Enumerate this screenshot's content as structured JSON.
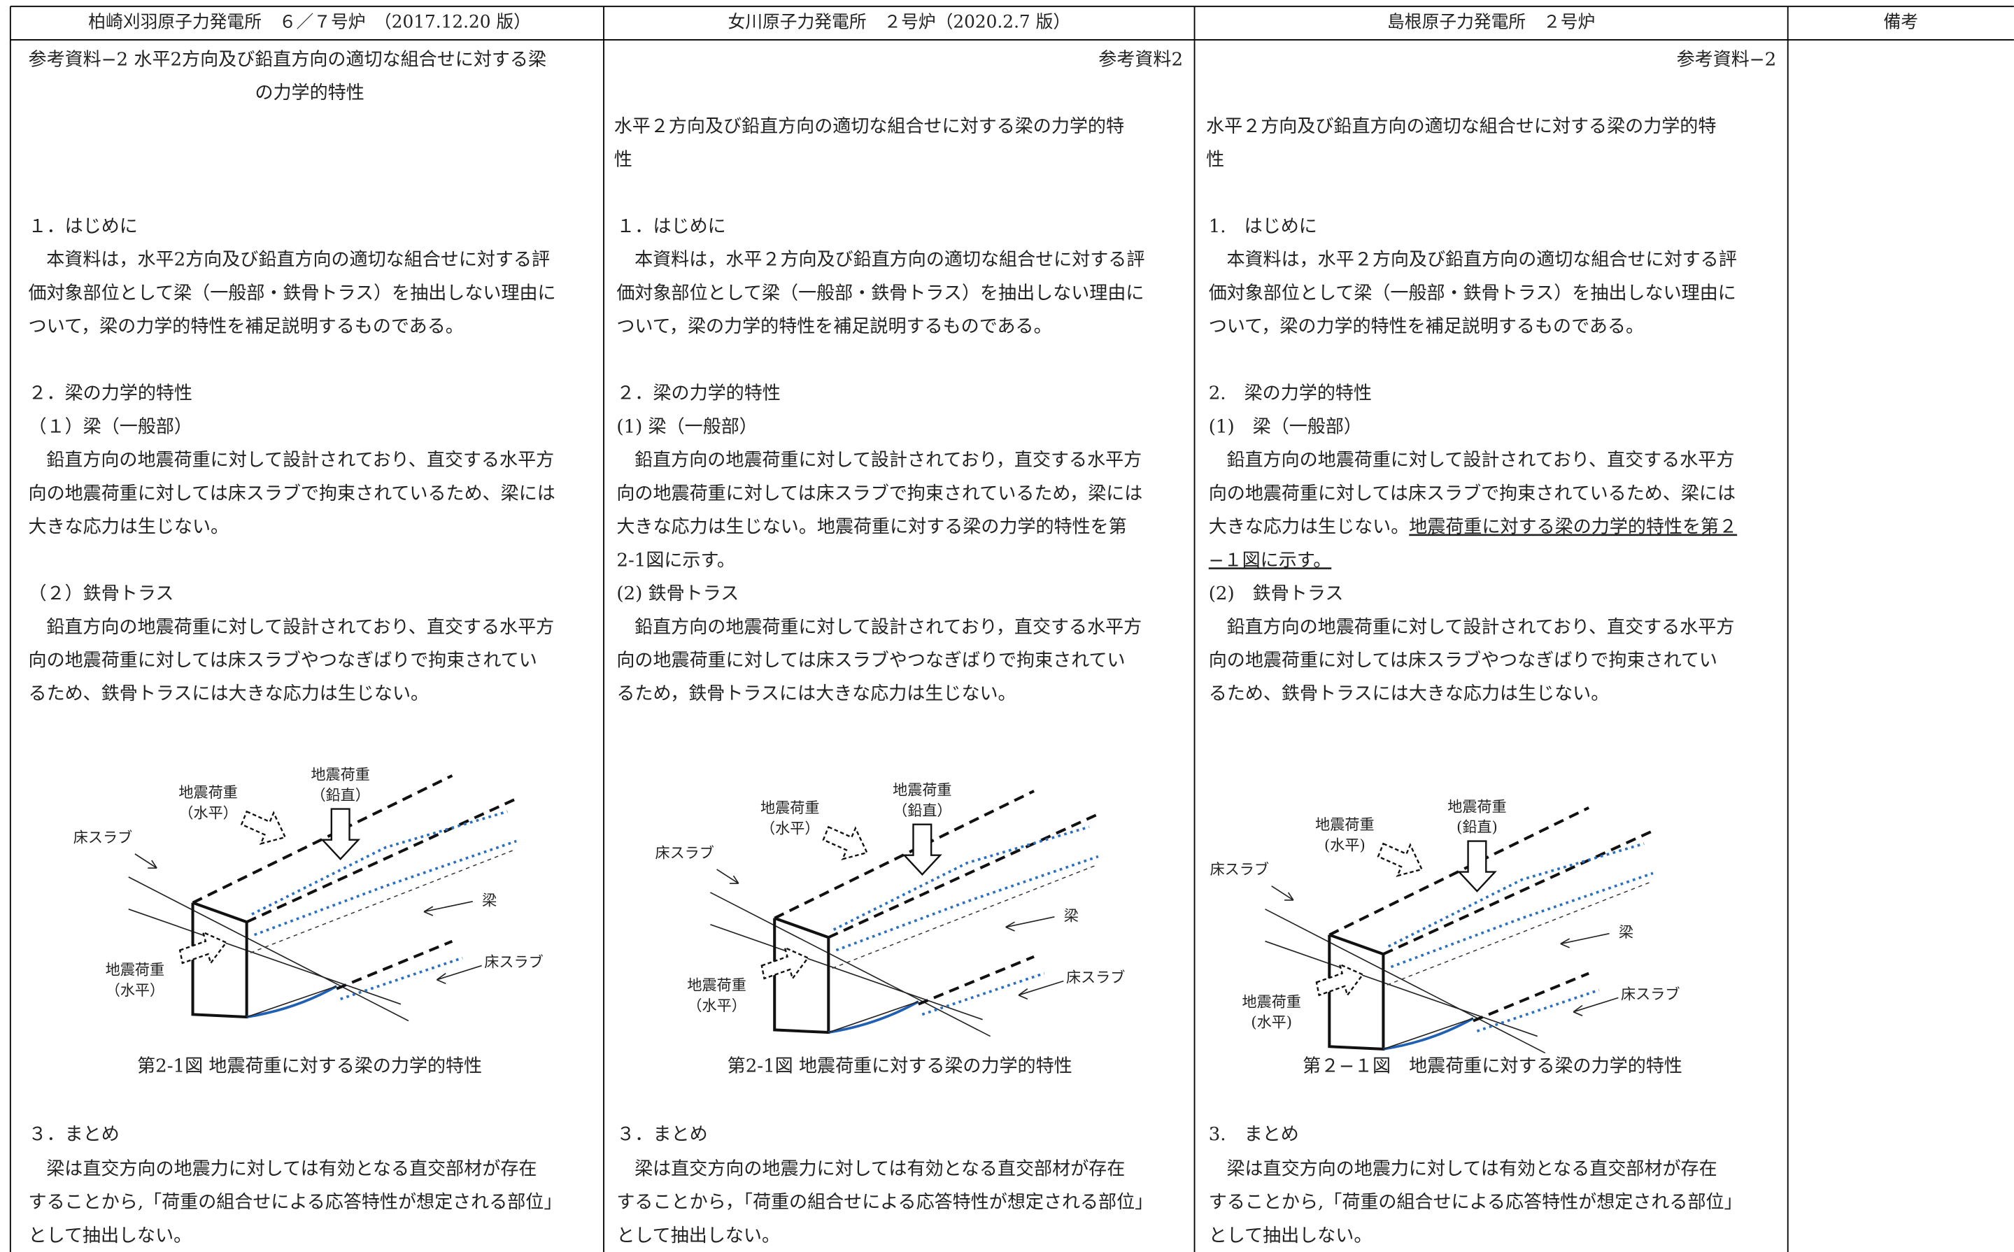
{
  "header": [
    "柏崎刈羽原子力発電所　６／７号炉　（2017.12.20 版）",
    "女川原子力発電所　２号炉（2020.2.7 版）",
    "島根原子力発電所　２号炉",
    "備考"
  ],
  "columns": [
    {
      "heading": [
        "参考資料−2 水平2方向及び鉛直方向の適切な組合せに対する梁",
        "の力学的特性"
      ],
      "intro": {
        "heading": "１．はじめに",
        "lines": [
          "本資料は，水平2方向及び鉛直方向の適切な組合せに対する評",
          "価対象部位として梁（一般部・鉄骨トラス）を抽出しない理由に",
          "ついて，梁の力学的特性を補足説明するものである。"
        ]
      },
      "section2": {
        "heading": "２．梁の力学的特性",
        "sub1": {
          "heading": "（１）梁（一般部）",
          "lines": [
            "鉛直方向の地震荷重に対して設計されており、直交する水平方",
            "向の地震荷重に対しては床スラブで拘束されているため、梁には",
            "大きな応力は生じない。"
          ]
        },
        "sub2": {
          "heading": "（２）鉄骨トラス",
          "lines": [
            "鉛直方向の地震荷重に対して設計されており、直交する水平方",
            "向の地震荷重に対しては床スラブやつなぎばりで拘束されてい",
            "るため、鉄骨トラスには大きな応力は生じない。"
          ]
        }
      },
      "figure": {
        "horizontal_load": [
          "地震荷重",
          "（水平）"
        ],
        "vertical_load": [
          "地震荷重",
          "（鉛直）"
        ],
        "slab_left": "床スラブ",
        "beam": "梁",
        "slab_right": "床スラブ",
        "side_load": [
          "地震荷重",
          "（水平）"
        ],
        "caption": "第2-1図 地震荷重に対する梁の力学的特性"
      },
      "summary": {
        "heading": "３．まとめ",
        "lines": [
          "梁は直交方向の地震力に対しては有効となる直交部材が存在",
          "することから,「荷重の組合せによる応答特性が想定される部位」",
          "として抽出しない。"
        ]
      }
    },
    {
      "reference": "参考資料2",
      "title": [
        "水平２方向及び鉛直方向の適切な組合せに対する梁の力学的特",
        "性"
      ],
      "intro": {
        "heading": "１．はじめに",
        "lines": [
          "本資料は，水平２方向及び鉛直方向の適切な組合せに対する評",
          "価対象部位として梁（一般部・鉄骨トラス）を抽出しない理由に",
          "ついて，梁の力学的特性を補足説明するものである。"
        ]
      },
      "section2": {
        "heading": "２．梁の力学的特性",
        "sub1": {
          "heading": "(1) 梁（一般部）",
          "lines": [
            "鉛直方向の地震荷重に対して設計されており，直交する水平方",
            "向の地震荷重に対しては床スラブで拘束されているため，梁には",
            "大きな応力は生じない。地震荷重に対する梁の力学的特性を第",
            "2-1図に示す。"
          ]
        },
        "sub2": {
          "heading": "(2) 鉄骨トラス",
          "lines": [
            "鉛直方向の地震荷重に対して設計されており，直交する水平方",
            "向の地震荷重に対しては床スラブやつなぎばりで拘束されてい",
            "るため，鉄骨トラスには大きな応力は生じない。"
          ]
        }
      },
      "figure": {
        "horizontal_load": [
          "地震荷重",
          "（水平）"
        ],
        "vertical_load": [
          "地震荷重",
          "（鉛直）"
        ],
        "slab_left": "床スラブ",
        "beam": "梁",
        "slab_right": "床スラブ",
        "side_load": [
          "地震荷重",
          "（水平）"
        ],
        "caption": "第2-1図 地震荷重に対する梁の力学的特性"
      },
      "summary": {
        "heading": "３．まとめ",
        "lines": [
          "梁は直交方向の地震力に対しては有効となる直交部材が存在",
          "することから，「荷重の組合せによる応答特性が想定される部位」",
          "として抽出しない。"
        ]
      }
    },
    {
      "reference": "参考資料−2",
      "title": [
        "水平２方向及び鉛直方向の適切な組合せに対する梁の力学的特",
        "性"
      ],
      "intro": {
        "heading": "1.　はじめに",
        "lines": [
          "本資料は，水平２方向及び鉛直方向の適切な組合せに対する評",
          "価対象部位として梁（一般部・鉄骨トラス）を抽出しない理由に",
          "ついて，梁の力学的特性を補足説明するものである。"
        ]
      },
      "section2": {
        "heading": "2.　梁の力学的特性",
        "sub1": {
          "heading": "(1)　梁（一般部）",
          "lines": [
            "鉛直方向の地震荷重に対して設計されており、直交する水平方",
            "向の地震荷重に対しては床スラブで拘束されているため、梁には",
            [
              {
                "text": "大きな応力は生じない。",
                "underline": false
              },
              {
                "text": "地震荷重に対する梁の力学的特性を第２",
                "underline": true
              }
            ],
            [
              {
                "text": "−１図に示す。",
                "underline": true
              }
            ]
          ]
        },
        "sub2": {
          "heading": "(2)　鉄骨トラス",
          "lines": [
            "鉛直方向の地震荷重に対して設計されており、直交する水平方",
            "向の地震荷重に対しては床スラブやつなぎばりで拘束されてい",
            "るため、鉄骨トラスには大きな応力は生じない。"
          ]
        }
      },
      "figure": {
        "horizontal_load": [
          "地震荷重",
          "(水平)"
        ],
        "vertical_load": [
          "地震荷重",
          "(鉛直)"
        ],
        "slab_left": "床スラブ",
        "beam": "梁",
        "slab_right": "床スラブ",
        "side_load": [
          "地震荷重",
          "(水平)"
        ],
        "caption": "第２−１図　地震荷重に対する梁の力学的特性"
      },
      "summary": {
        "heading": "3.　まとめ",
        "lines": [
          "梁は直交方向の地震力に対しては有効となる直交部材が存在",
          "することから,「荷重の組合せによる応答特性が想定される部位」",
          "として抽出しない。"
        ]
      }
    }
  ]
}
